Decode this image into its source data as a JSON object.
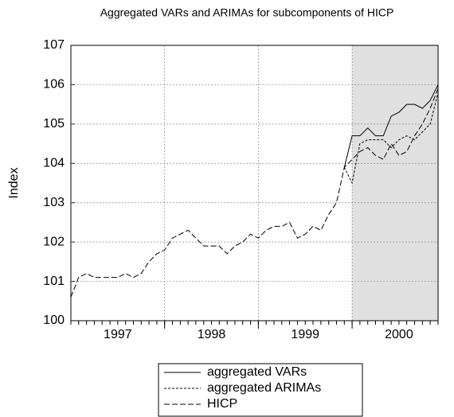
{
  "chart_data": {
    "type": "line",
    "title": "Aggregated VARs and ARIMAs for subcomponents of HICP",
    "y_label": "Index",
    "x": [
      1997,
      1997.083,
      1997.167,
      1997.25,
      1997.333,
      1997.417,
      1997.5,
      1997.583,
      1997.667,
      1997.75,
      1997.833,
      1997.917,
      1998,
      1998.083,
      1998.167,
      1998.25,
      1998.333,
      1998.417,
      1998.5,
      1998.583,
      1998.667,
      1998.75,
      1998.833,
      1998.917,
      1999,
      1999.083,
      1999.167,
      1999.25,
      1999.333,
      1999.417,
      1999.5,
      1999.583,
      1999.667,
      1999.75,
      1999.833,
      1999.917,
      2000,
      2000.083,
      2000.167,
      2000.25,
      2000.333,
      2000.417,
      2000.5,
      2000.583,
      2000.667,
      2000.75,
      2000.833,
      2000.917
    ],
    "series": [
      {
        "name": "aggregated VARs",
        "color": "#000000",
        "dash": "none",
        "values": [
          null,
          null,
          null,
          null,
          null,
          null,
          null,
          null,
          null,
          null,
          null,
          null,
          null,
          null,
          null,
          null,
          null,
          null,
          null,
          null,
          null,
          null,
          null,
          null,
          null,
          null,
          null,
          null,
          null,
          null,
          null,
          null,
          null,
          null,
          null,
          103.9,
          104.7,
          104.7,
          104.9,
          104.7,
          104.7,
          105.2,
          105.3,
          105.5,
          105.5,
          105.4,
          105.6,
          106.0
        ]
      },
      {
        "name": "aggregated ARIMAs",
        "color": "#000000",
        "dash": "3,2",
        "values": [
          null,
          null,
          null,
          null,
          null,
          null,
          null,
          null,
          null,
          null,
          null,
          null,
          null,
          null,
          null,
          null,
          null,
          null,
          null,
          null,
          null,
          null,
          null,
          null,
          null,
          null,
          null,
          null,
          null,
          null,
          null,
          null,
          null,
          null,
          null,
          103.9,
          103.5,
          104.5,
          104.6,
          104.6,
          104.6,
          104.4,
          104.6,
          104.7,
          104.6,
          104.8,
          105.0,
          105.8
        ]
      },
      {
        "name": "HICP",
        "color": "#000000",
        "dash": "7,3",
        "values": [
          100.6,
          101.1,
          101.2,
          101.1,
          101.1,
          101.1,
          101.1,
          101.2,
          101.1,
          101.2,
          101.5,
          101.7,
          101.8,
          102.1,
          102.2,
          102.3,
          102.1,
          101.9,
          101.9,
          101.9,
          101.7,
          101.9,
          102.0,
          102.2,
          102.1,
          102.3,
          102.4,
          102.4,
          102.5,
          102.1,
          102.2,
          102.4,
          102.3,
          102.7,
          103.0,
          103.9,
          104.1,
          104.3,
          104.4,
          104.2,
          104.1,
          104.5,
          104.2,
          104.3,
          104.7,
          105.0,
          105.4,
          105.9
        ]
      }
    ],
    "xlim": [
      1997,
      2000.917
    ],
    "xticks": [
      {
        "value": 1997.5,
        "label": "1997"
      },
      {
        "value": 1998.5,
        "label": "1998"
      },
      {
        "value": 1999.5,
        "label": "1999"
      },
      {
        "value": 2000.5,
        "label": "2000"
      }
    ],
    "year_boundaries": [
      1998,
      1999,
      2000
    ],
    "shaded_xrange": [
      2000,
      2000.917
    ],
    "ylim": [
      100,
      107
    ],
    "yticks": [
      100,
      101,
      102,
      103,
      104,
      105,
      106,
      107
    ],
    "grid": true,
    "legend": "bottom"
  }
}
